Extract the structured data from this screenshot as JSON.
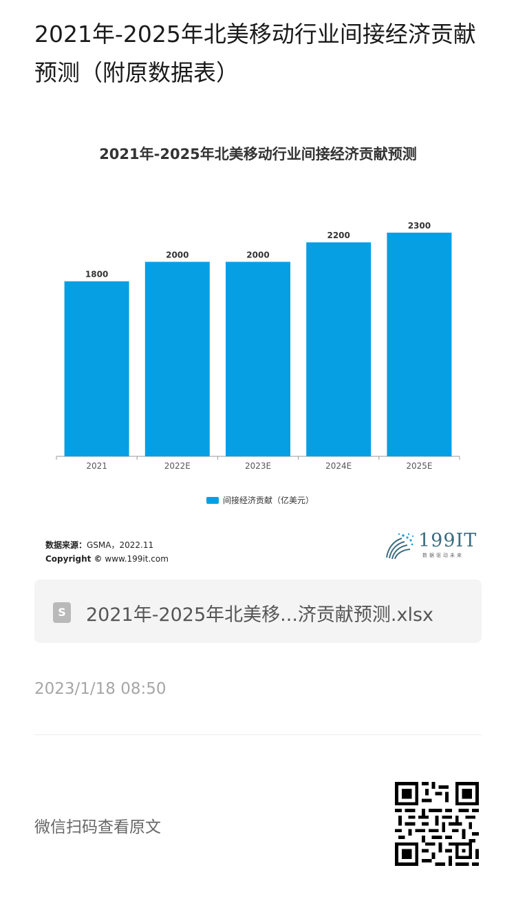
{
  "page": {
    "title": "2021年-2025年北美移动行业间接经济贡献预测（附原数据表）"
  },
  "chart_data": {
    "type": "bar",
    "title": "2021年-2025年北美移动行业间接经济贡献预测",
    "categories": [
      "2021",
      "2022E",
      "2023E",
      "2024E",
      "2025E"
    ],
    "series": [
      {
        "name": "间接经济贡献（亿美元）",
        "values": [
          1800,
          2000,
          2000,
          2200,
          2300
        ]
      }
    ],
    "ylim": [
      0,
      2300
    ],
    "grid": false,
    "legend": "bottom-center",
    "bar_color": "#079fe4"
  },
  "source": {
    "label": "数据来源：",
    "value": "GSMA，2022.11",
    "copyright_label": "Copyright ©",
    "copyright_value": "www.199it.com"
  },
  "logo": {
    "text": "199IT",
    "subtitle": "数据驱动未来"
  },
  "file": {
    "icon": "S",
    "name": "2021年-2025年北美移...济贡献预测.xlsx"
  },
  "timestamp": "2023/1/18 08:50",
  "wechat": {
    "text": "微信扫码查看原文"
  }
}
